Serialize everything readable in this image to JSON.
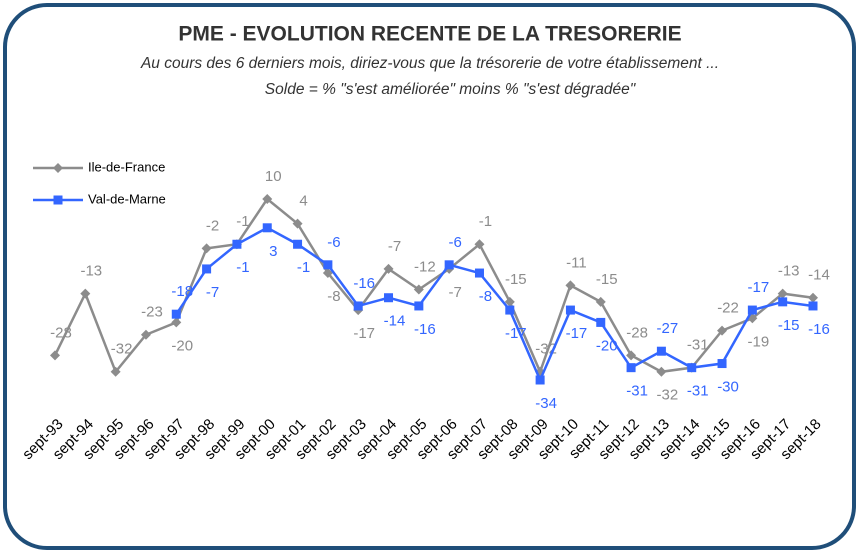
{
  "chart_data": {
    "type": "line",
    "title": "PME - EVOLUTION RECENTE DE LA TRESORERIE",
    "subtitle": [
      "Au cours des 6 derniers mois, diriez-vous que la trésorerie de votre établissement ...",
      "Solde = % \"s'est améliorée\"  moins %  \"s'est dégradée\""
    ],
    "categories": [
      "sept-93",
      "sept-94",
      "sept-95",
      "sept-96",
      "sept-97",
      "sept-98",
      "sept-99",
      "sept-00",
      "sept-01",
      "sept-02",
      "sept-03",
      "sept-04",
      "sept-05",
      "sept-06",
      "sept-07",
      "sept-08",
      "sept-09",
      "sept-10",
      "sept-11",
      "sept-12",
      "sept-13",
      "sept-14",
      "sept-15",
      "sept-16",
      "sept-17",
      "sept-18"
    ],
    "series": [
      {
        "name": "Ile-de-France",
        "color": "#8c8c8c",
        "marker": "diamond",
        "values": [
          -28,
          -13,
          -32,
          -23,
          -20,
          -2,
          -1,
          10,
          4,
          -8,
          -17,
          -7,
          -12,
          -7,
          -1,
          -15,
          -32,
          -11,
          -15,
          -28,
          -32,
          -31,
          -22,
          -19,
          -13,
          -14
        ]
      },
      {
        "name": "Val-de-Marne",
        "color": "#3366ff",
        "marker": "square",
        "values": [
          null,
          null,
          null,
          null,
          -18,
          -7,
          -1,
          3,
          -1,
          -6,
          -16,
          -14,
          -16,
          -6,
          -8,
          -17,
          -34,
          -17,
          -20,
          -31,
          -27,
          -31,
          -30,
          -17,
          -15,
          -16
        ]
      }
    ]
  }
}
